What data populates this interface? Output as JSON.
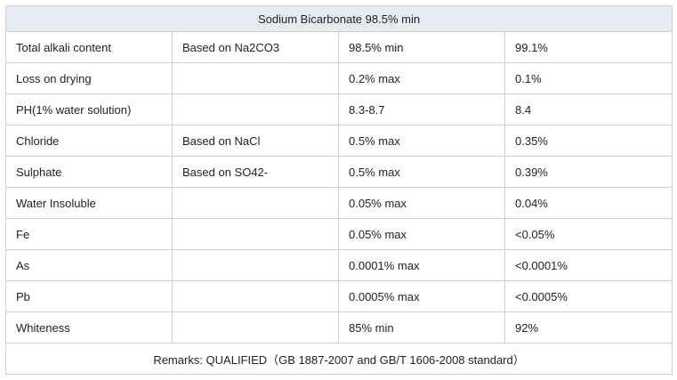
{
  "table": {
    "title": "Sodium Bicarbonate 98.5% min",
    "rows": [
      {
        "item": "Total alkali content",
        "basis": "Based on Na2CO3",
        "spec": "98.5% min",
        "result": "99.1%"
      },
      {
        "item": "Loss on drying",
        "basis": "",
        "spec": "0.2% max",
        "result": "0.1%"
      },
      {
        "item": "PH(1% water solution)",
        "basis": "",
        "spec": "8.3-8.7",
        "result": "8.4"
      },
      {
        "item": "Chloride",
        "basis": "Based on NaCl",
        "spec": "0.5% max",
        "result": "0.35%"
      },
      {
        "item": "Sulphate",
        "basis": "Based on SO42-",
        "spec": "0.5% max",
        "result": "0.39%"
      },
      {
        "item": "Water Insoluble",
        "basis": "",
        "spec": "0.05% max",
        "result": "0.04%"
      },
      {
        "item": "Fe",
        "basis": "",
        "spec": "0.05% max",
        "result": "<0.05%"
      },
      {
        "item": "As",
        "basis": "",
        "spec": "0.0001% max",
        "result": "<0.0001%"
      },
      {
        "item": "Pb",
        "basis": "",
        "spec": "0.0005% max",
        "result": "<0.0005%"
      },
      {
        "item": "Whiteness",
        "basis": "",
        "spec": "85% min",
        "result": "92%"
      }
    ],
    "remarks": "Remarks: QUALIFIED（GB 1887-2007 and GB/T 1606-2008 standard）"
  }
}
